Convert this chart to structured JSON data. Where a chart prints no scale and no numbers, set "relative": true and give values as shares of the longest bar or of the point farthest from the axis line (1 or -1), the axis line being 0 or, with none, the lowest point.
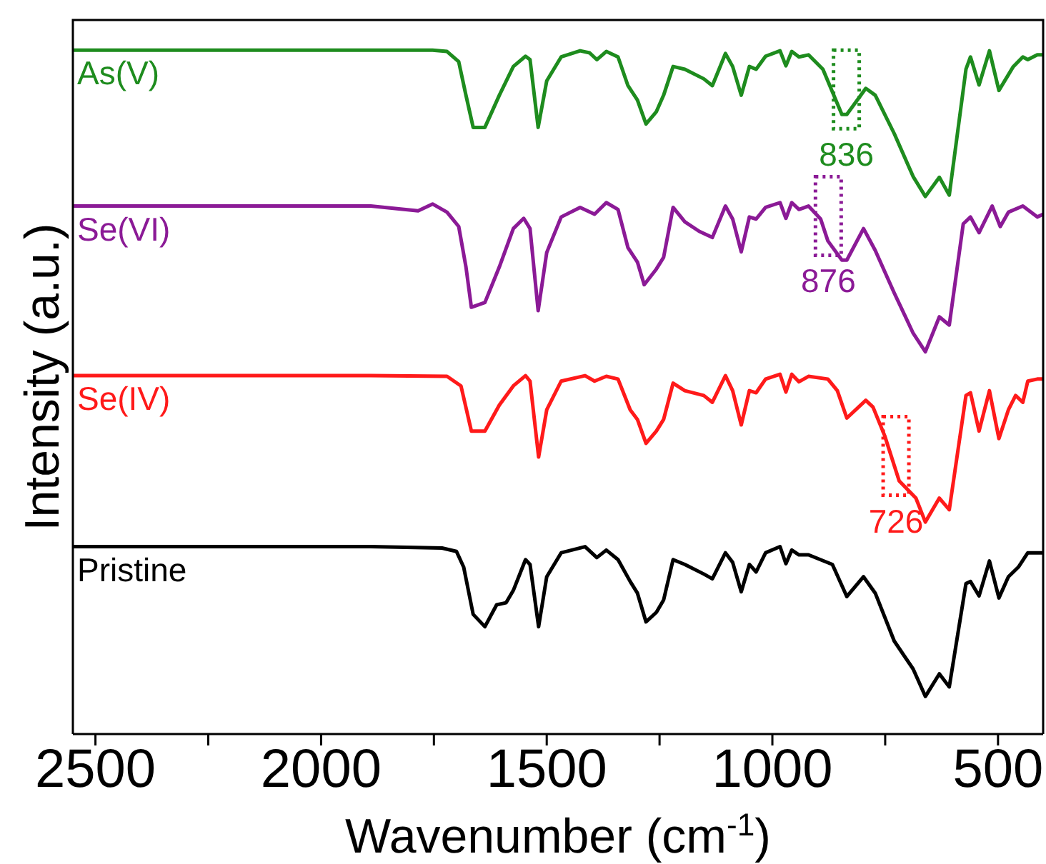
{
  "chart_data": {
    "type": "line",
    "relative": true,
    "xlabel": "Wavenumber (cm$^{-1}$)",
    "ylabel": "Intensity (a.u.)",
    "xlim": [
      2550,
      400
    ],
    "xticks": [
      2500,
      {
        "value": 2250,
        "label": null
      },
      2000,
      {
        "value": 1750,
        "label": null
      },
      1500,
      {
        "value": 1250,
        "label": null
      },
      1000,
      {
        "value": 750,
        "label": null
      },
      500
    ],
    "series": [
      {
        "name": "As(V)",
        "color": "#1e8c1e",
        "x": [
          2550,
          1890,
          1753,
          1721,
          1695,
          1679,
          1663,
          1637,
          1605,
          1574,
          1547,
          1537,
          1519,
          1500,
          1468,
          1426,
          1405,
          1389,
          1368,
          1342,
          1320,
          1299,
          1280,
          1257,
          1241,
          1220,
          1194,
          1152,
          1133,
          1104,
          1088,
          1069,
          1051,
          1036,
          1015,
          983,
          970,
          957,
          941,
          920,
          888,
          846,
          835,
          793,
          772,
          730,
          688,
          661,
          630,
          608,
          571,
          561,
          542,
          519,
          498,
          466,
          445,
          434,
          413,
          400
        ],
        "values": [
          1.0,
          1.0,
          1.0,
          0.998,
          0.983,
          0.934,
          0.887,
          0.887,
          0.934,
          0.976,
          0.991,
          0.986,
          0.887,
          0.955,
          0.99,
          0.999,
          0.996,
          0.986,
          0.998,
          0.99,
          0.948,
          0.927,
          0.892,
          0.91,
          0.934,
          0.976,
          0.972,
          0.958,
          0.948,
          0.995,
          0.976,
          0.934,
          0.976,
          0.972,
          0.991,
          0.999,
          0.977,
          0.998,
          0.99,
          0.993,
          0.972,
          0.906,
          0.906,
          0.944,
          0.934,
          0.878,
          0.815,
          0.786,
          0.814,
          0.788,
          0.972,
          0.99,
          0.949,
          0.999,
          0.941,
          0.976,
          0.99,
          0.986,
          0.993,
          0.993
        ]
      },
      {
        "name": "Se(VI)",
        "color": "#8b1a96",
        "x": [
          2550,
          1890,
          1785,
          1753,
          1721,
          1695,
          1679,
          1667,
          1637,
          1605,
          1574,
          1551,
          1537,
          1519,
          1500,
          1468,
          1426,
          1394,
          1368,
          1342,
          1320,
          1299,
          1284,
          1257,
          1241,
          1220,
          1194,
          1162,
          1133,
          1104,
          1088,
          1069,
          1051,
          1036,
          1015,
          983,
          970,
          957,
          941,
          920,
          893,
          877,
          846,
          835,
          798,
          772,
          730,
          688,
          661,
          630,
          608,
          577,
          561,
          542,
          513,
          495,
          477,
          445,
          413,
          400
        ],
        "values": [
          0.772,
          0.772,
          0.765,
          0.775,
          0.763,
          0.742,
          0.683,
          0.624,
          0.631,
          0.683,
          0.739,
          0.754,
          0.739,
          0.619,
          0.704,
          0.756,
          0.77,
          0.76,
          0.777,
          0.767,
          0.711,
          0.69,
          0.657,
          0.68,
          0.697,
          0.77,
          0.749,
          0.735,
          0.726,
          0.772,
          0.753,
          0.705,
          0.756,
          0.753,
          0.77,
          0.777,
          0.754,
          0.777,
          0.767,
          0.772,
          0.753,
          0.721,
          0.693,
          0.693,
          0.739,
          0.707,
          0.645,
          0.586,
          0.559,
          0.61,
          0.598,
          0.746,
          0.756,
          0.733,
          0.772,
          0.742,
          0.763,
          0.772,
          0.756,
          0.76
        ]
      },
      {
        "name": "Se(IV)",
        "color": "#ff1a1a",
        "x": [
          2550,
          1890,
          1721,
          1690,
          1667,
          1637,
          1605,
          1574,
          1547,
          1537,
          1518,
          1500,
          1468,
          1415,
          1394,
          1368,
          1342,
          1315,
          1299,
          1280,
          1257,
          1241,
          1220,
          1194,
          1152,
          1133,
          1104,
          1088,
          1069,
          1051,
          1036,
          1015,
          983,
          970,
          957,
          941,
          920,
          877,
          856,
          835,
          793,
          777,
          751,
          719,
          682,
          661,
          630,
          608,
          571,
          561,
          542,
          519,
          498,
          477,
          461,
          445,
          434,
          413,
          400
        ],
        "values": [
          0.524,
          0.524,
          0.523,
          0.509,
          0.443,
          0.443,
          0.481,
          0.509,
          0.524,
          0.516,
          0.405,
          0.474,
          0.516,
          0.524,
          0.516,
          0.523,
          0.519,
          0.474,
          0.46,
          0.425,
          0.443,
          0.46,
          0.513,
          0.502,
          0.495,
          0.485,
          0.524,
          0.502,
          0.452,
          0.502,
          0.499,
          0.519,
          0.526,
          0.5,
          0.526,
          0.515,
          0.523,
          0.519,
          0.502,
          0.462,
          0.488,
          0.478,
          0.436,
          0.37,
          0.345,
          0.31,
          0.345,
          0.328,
          0.495,
          0.499,
          0.443,
          0.502,
          0.432,
          0.474,
          0.495,
          0.485,
          0.516,
          0.519,
          0.519
        ]
      },
      {
        "name": "Pristine",
        "color": "#000000",
        "x": [
          2550,
          1890,
          1732,
          1700,
          1684,
          1663,
          1637,
          1611,
          1590,
          1574,
          1547,
          1537,
          1518,
          1500,
          1468,
          1415,
          1389,
          1368,
          1342,
          1315,
          1299,
          1280,
          1257,
          1241,
          1220,
          1194,
          1152,
          1133,
          1104,
          1088,
          1069,
          1051,
          1036,
          1015,
          983,
          970,
          957,
          941,
          920,
          867,
          835,
          798,
          772,
          730,
          688,
          661,
          630,
          608,
          571,
          561,
          542,
          519,
          498,
          477,
          455,
          434,
          408,
          400
        ],
        "values": [
          0.274,
          0.274,
          0.272,
          0.267,
          0.244,
          0.175,
          0.157,
          0.189,
          0.192,
          0.21,
          0.255,
          0.248,
          0.157,
          0.23,
          0.265,
          0.274,
          0.258,
          0.269,
          0.255,
          0.223,
          0.206,
          0.164,
          0.178,
          0.196,
          0.255,
          0.248,
          0.234,
          0.227,
          0.265,
          0.251,
          0.208,
          0.248,
          0.237,
          0.265,
          0.274,
          0.249,
          0.269,
          0.262,
          0.262,
          0.248,
          0.201,
          0.23,
          0.206,
          0.136,
          0.095,
          0.055,
          0.088,
          0.069,
          0.22,
          0.223,
          0.202,
          0.253,
          0.199,
          0.23,
          0.244,
          0.265,
          0.265,
          0.265
        ]
      }
    ],
    "annotations": [
      {
        "text": "836",
        "x": 836,
        "y": 0.906
      },
      {
        "text": "876",
        "x": 876,
        "y": 0.721
      },
      {
        "text": "726",
        "x": 726,
        "y": 0.37
      }
    ]
  }
}
